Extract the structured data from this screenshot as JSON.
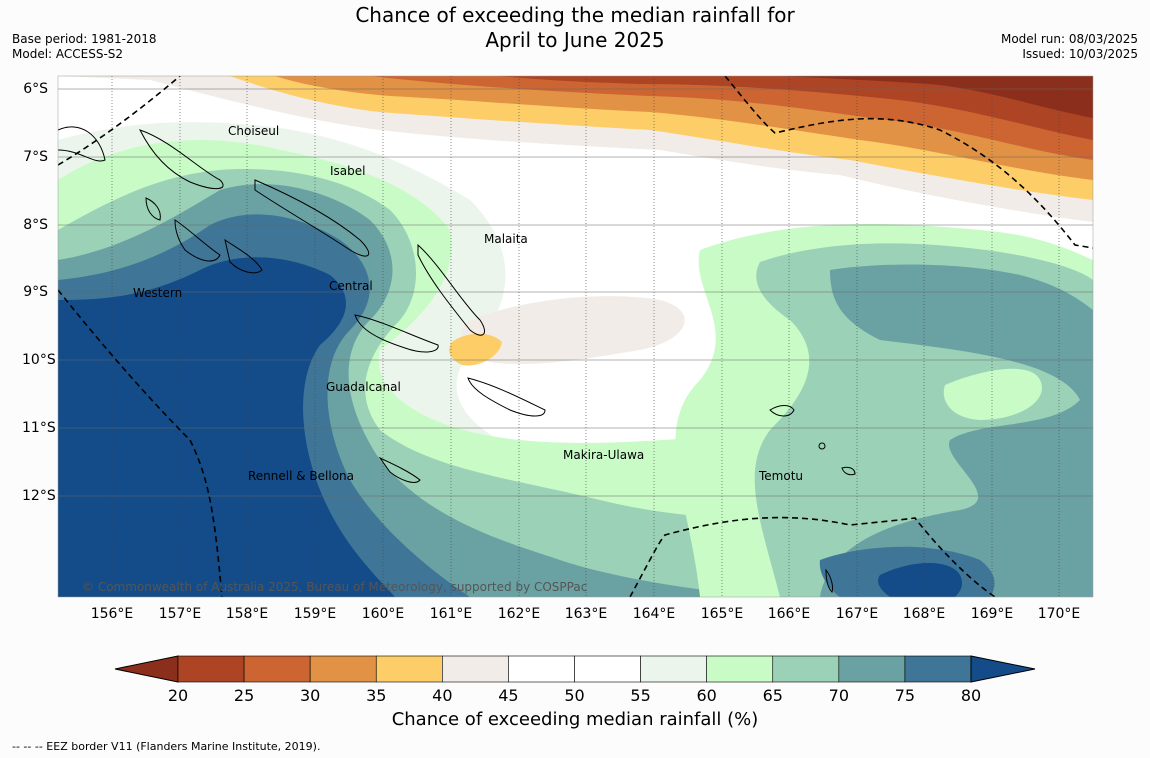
{
  "title_line1": "Chance of exceeding the median rainfall for",
  "title_line2": "April to June 2025",
  "meta_left": [
    "Base period: 1981-2018",
    "Model: ACCESS-S2"
  ],
  "meta_right": [
    "Model run: 08/03/2025",
    "Issued: 10/03/2025"
  ],
  "lat_labels": [
    "6°S",
    "7°S",
    "8°S",
    "9°S",
    "10°S",
    "11°S",
    "12°S"
  ],
  "lon_labels": [
    "156°E",
    "157°E",
    "158°E",
    "159°E",
    "160°E",
    "161°E",
    "162°E",
    "163°E",
    "164°E",
    "165°E",
    "166°E",
    "167°E",
    "168°E",
    "169°E",
    "170°E"
  ],
  "places": [
    "Choiseul",
    "Isabel",
    "Malaita",
    "Western",
    "Central",
    "Guadalcanal",
    "Makira-Ulawa",
    "Temotu",
    "Rennell & Bellona"
  ],
  "copyright": "© Commonwealth of Australia 2025, Bureau of Meteorology, supported by COSPPac",
  "colorbar": {
    "ticks": [
      "20",
      "25",
      "30",
      "35",
      "40",
      "45",
      "50",
      "55",
      "60",
      "65",
      "70",
      "75",
      "80"
    ],
    "colors": [
      "#8b2f1c",
      "#ad4423",
      "#cc6532",
      "#e29244",
      "#fdcd67",
      "#f1ece7",
      "#ffffff",
      "#ffffff",
      "#ebf5ec",
      "#c9fbc7",
      "#9bd1b7",
      "#6aa2a4",
      "#3f7698",
      "#134c88"
    ],
    "title": "Chance of exceeding median rainfall (%)"
  },
  "legend_note": "-- -- -- EEZ border V11 (Flanders Marine Institute, 2019)."
}
